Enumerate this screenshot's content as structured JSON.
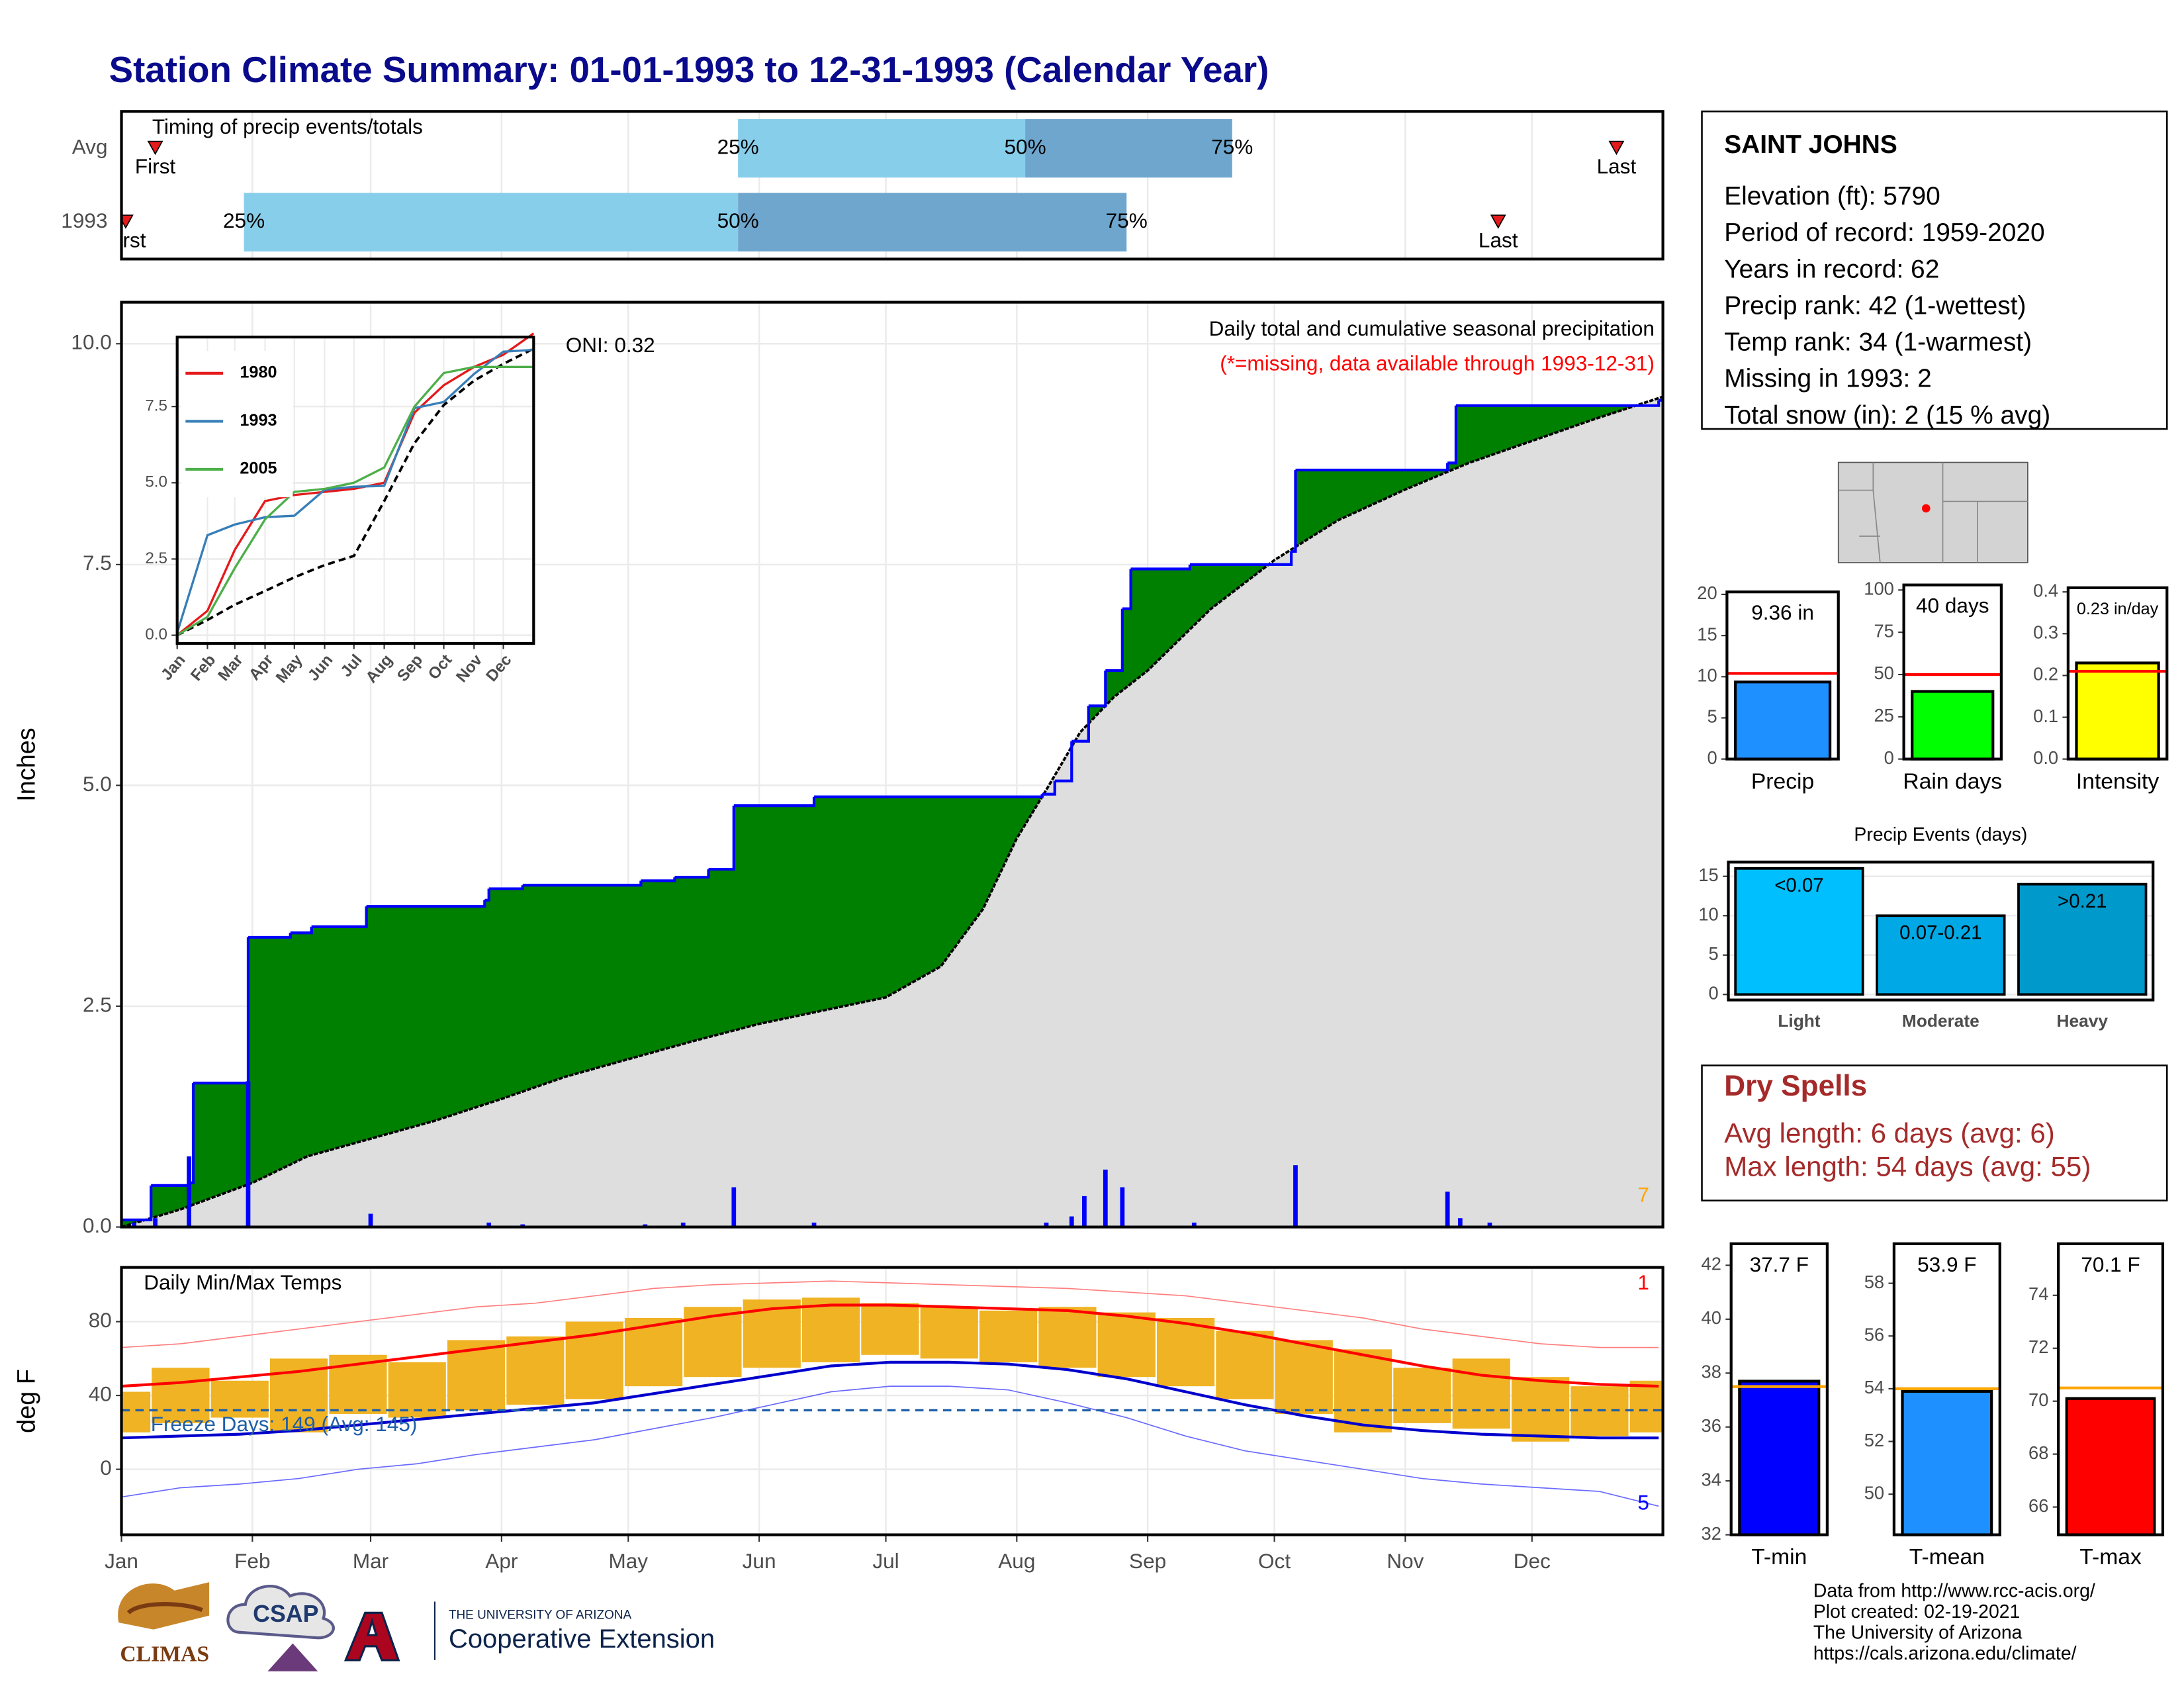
{
  "title": "Station Climate Summary: 01-01-1993 to 12-31-1993 (Calendar Year)",
  "chart_data": [
    {
      "type": "timing",
      "title": "Timing of precip events/totals",
      "xlim": [
        1,
        366
      ],
      "rows": [
        {
          "name": "Avg",
          "first": 9,
          "q25": 147,
          "q50": 215,
          "q75": 264,
          "last": 355
        },
        {
          "name": "1993",
          "first": 2,
          "q25": 30,
          "q50": 147,
          "q75": 239,
          "last": 327
        }
      ],
      "labels": {
        "first": "First",
        "q25": "25%",
        "q50": "50%",
        "q75": "75%",
        "last": "Last"
      },
      "colors": [
        "#87ceeb",
        "#6ea6cd"
      ],
      "marker_color": "#e41a1c"
    },
    {
      "type": "precipitation",
      "ylabel": "Inches",
      "annotations": {
        "title": "Daily total and cumulative seasonal precipitation",
        "note": "(*=missing, data available through 1993-12-31)",
        "oni": "ONI: 0.32",
        "count": "7"
      },
      "xlim": [
        1,
        366
      ],
      "ylim": [
        0,
        10.47
      ],
      "yticks": [
        {
          "value": 0,
          "label": "0.0"
        },
        2.5,
        {
          "value": 5,
          "label": "5.0"
        },
        7.5,
        {
          "value": 10,
          "label": "10.0"
        }
      ],
      "series": [
        {
          "color": "#0000ff",
          "fill": "#008000",
          "x": [
            1,
            8,
            17,
            18,
            31,
            41,
            46,
            59,
            87,
            88,
            96,
            124,
            132,
            140,
            146,
            165,
            219,
            222,
            226,
            230,
            234,
            238,
            240,
            254,
            278,
            279,
            315,
            317,
            365
          ],
          "values": [
            0.08,
            0.47,
            0.5,
            1.63,
            3.28,
            3.33,
            3.4,
            3.63,
            3.7,
            3.83,
            3.87,
            3.92,
            3.96,
            4.05,
            4.77,
            4.87,
            4.9,
            5.05,
            5.5,
            5.9,
            6.3,
            7.0,
            7.45,
            7.5,
            7.65,
            8.57,
            8.65,
            9.3,
            9.36
          ]
        },
        {
          "color": "#000000",
          "fill": "#dedede",
          "x": [
            1,
            15,
            32,
            45,
            60,
            75,
            91,
            106,
            121,
            136,
            152,
            167,
            182,
            195,
            205,
            213,
            220,
            228,
            236,
            244,
            259,
            274,
            289,
            305,
            320,
            335,
            350,
            366
          ],
          "values": [
            0,
            0.2,
            0.5,
            0.8,
            1.0,
            1.2,
            1.45,
            1.7,
            1.9,
            2.1,
            2.3,
            2.45,
            2.6,
            2.95,
            3.6,
            4.4,
            4.95,
            5.6,
            6.0,
            6.3,
            7.0,
            7.55,
            8.0,
            8.35,
            8.65,
            8.9,
            9.15,
            9.4
          ]
        }
      ],
      "daily": {
        "color": "#0000ff",
        "x": [
          4,
          9,
          17,
          31,
          60,
          88,
          96,
          125,
          134,
          146,
          165,
          220,
          226,
          229,
          234,
          238,
          255,
          279,
          315,
          318,
          325
        ],
        "values": [
          0.05,
          0.1,
          0.8,
          1.65,
          0.15,
          0.05,
          0.03,
          0.03,
          0.05,
          0.45,
          0.05,
          0.05,
          0.12,
          0.35,
          0.65,
          0.45,
          0.05,
          0.7,
          0.4,
          0.1,
          0.05
        ]
      }
    },
    {
      "type": "line",
      "xlim": [
        1,
        366
      ],
      "ylim": [
        -0.27,
        9.78
      ],
      "yticks": [
        {
          "value": 0,
          "label": "0.0"
        },
        2.5,
        {
          "value": 5,
          "label": "5.0"
        },
        7.5
      ],
      "xticks": [
        {
          "value": 1,
          "label": "Jan"
        },
        {
          "value": 32,
          "label": "Feb"
        },
        {
          "value": 60,
          "label": "Mar"
        },
        {
          "value": 91,
          "label": "Apr"
        },
        {
          "value": 121,
          "label": "May"
        },
        {
          "value": 152,
          "label": "Jun"
        },
        {
          "value": 182,
          "label": "Jul"
        },
        {
          "value": 213,
          "label": "Aug"
        },
        {
          "value": 244,
          "label": "Sep"
        },
        {
          "value": 274,
          "label": "Oct"
        },
        {
          "value": 305,
          "label": "Nov"
        },
        {
          "value": 335,
          "label": "Dec"
        }
      ],
      "x": [
        1,
        32,
        60,
        91,
        121,
        152,
        182,
        213,
        244,
        274,
        305,
        335,
        366
      ],
      "series": [
        {
          "name": "1980",
          "color": "#e41a1c",
          "values": [
            0,
            0.8,
            2.8,
            4.4,
            4.6,
            4.7,
            4.8,
            5.0,
            7.3,
            8.2,
            8.8,
            9.2,
            9.9
          ]
        },
        {
          "name": "1993",
          "color": "#377eb8",
          "values": [
            0.08,
            3.28,
            3.63,
            3.87,
            3.92,
            4.77,
            4.87,
            4.9,
            7.45,
            7.65,
            8.57,
            9.3,
            9.36
          ]
        },
        {
          "name": "2005",
          "color": "#4daf4a",
          "values": [
            0,
            0.6,
            2.2,
            3.8,
            4.7,
            4.8,
            5.0,
            5.5,
            7.5,
            8.6,
            8.8,
            8.8,
            8.8
          ]
        }
      ],
      "average": {
        "color": "#000000",
        "dashed": true,
        "values": [
          0,
          0.5,
          1.0,
          1.45,
          1.9,
          2.3,
          2.6,
          4.4,
          6.3,
          7.55,
          8.35,
          8.9,
          9.4
        ]
      }
    },
    {
      "type": "temperature",
      "title": "Daily Min/Max Temps",
      "ylabel": "deg F",
      "freeze_label": "Freeze Days: 149 (Avg: 145)",
      "freeze_temp": 32,
      "freeze_color": "#1f5fa8",
      "record_high_count": "1",
      "record_low_count": "5",
      "xlim": [
        1,
        366
      ],
      "ylim": [
        -35.5,
        109.4
      ],
      "yticks": [
        0,
        40,
        80
      ],
      "xticks": [
        {
          "value": 1,
          "label": "Jan"
        },
        {
          "value": 32,
          "label": "Feb"
        },
        {
          "value": 60,
          "label": "Mar"
        },
        {
          "value": 91,
          "label": "Apr"
        },
        {
          "value": 121,
          "label": "May"
        },
        {
          "value": 152,
          "label": "Jun"
        },
        {
          "value": 182,
          "label": "Jul"
        },
        {
          "value": 213,
          "label": "Aug"
        },
        {
          "value": 244,
          "label": "Sep"
        },
        {
          "value": 274,
          "label": "Oct"
        },
        {
          "value": 305,
          "label": "Nov"
        },
        {
          "value": 335,
          "label": "Dec"
        }
      ],
      "x": [
        1,
        15,
        29,
        43,
        57,
        71,
        85,
        99,
        113,
        127,
        141,
        155,
        169,
        183,
        197,
        211,
        225,
        239,
        253,
        267,
        281,
        295,
        309,
        323,
        337,
        351,
        365
      ],
      "range": {
        "color": "#f0b323",
        "low": [
          20,
          25,
          28,
          20,
          30,
          28,
          32,
          35,
          38,
          45,
          50,
          55,
          58,
          62,
          60,
          58,
          55,
          50,
          45,
          38,
          30,
          20,
          25,
          22,
          15,
          18,
          20
        ],
        "high": [
          42,
          55,
          48,
          60,
          62,
          58,
          70,
          72,
          80,
          82,
          88,
          92,
          93,
          90,
          88,
          86,
          88,
          85,
          82,
          75,
          70,
          65,
          55,
          60,
          50,
          45,
          48
        ]
      },
      "series": [
        {
          "color": "#ff0000",
          "width": 2,
          "values": [
            45,
            47,
            50,
            53,
            57,
            61,
            65,
            69,
            73,
            78,
            83,
            87,
            89,
            89,
            88,
            87,
            86,
            83,
            79,
            74,
            68,
            62,
            56,
            51,
            48,
            46,
            45
          ]
        },
        {
          "color": "#0000cd",
          "width": 2,
          "values": [
            17,
            18,
            19,
            21,
            24,
            27,
            30,
            33,
            36,
            41,
            46,
            51,
            56,
            58,
            58,
            57,
            54,
            49,
            42,
            35,
            29,
            24,
            21,
            19,
            18,
            17,
            17
          ]
        },
        {
          "color": "#ff7f7f",
          "width": 0.8,
          "values": [
            66,
            68,
            72,
            76,
            80,
            84,
            88,
            90,
            94,
            98,
            100,
            101,
            102,
            101,
            100,
            99,
            98,
            96,
            94,
            90,
            86,
            82,
            76,
            72,
            68,
            66,
            66
          ]
        },
        {
          "color": "#6a6aff",
          "width": 0.8,
          "values": [
            -15,
            -10,
            -8,
            -5,
            0,
            3,
            8,
            12,
            16,
            22,
            28,
            35,
            42,
            45,
            45,
            43,
            36,
            28,
            18,
            10,
            5,
            0,
            -5,
            -8,
            -10,
            -12,
            -20
          ]
        }
      ]
    },
    {
      "type": "summary",
      "categories": [
        "Precip"
      ],
      "values": [
        9.36
      ],
      "value_labels": [
        "9.36 in"
      ],
      "average": 10.4,
      "color": "#1e90ff",
      "average_color": "#ff0000",
      "ylim": [
        0,
        20.3
      ],
      "yticks": [
        0,
        5,
        10,
        15,
        20
      ]
    },
    {
      "type": "summary",
      "categories": [
        "Rain days"
      ],
      "values": [
        40
      ],
      "value_labels": [
        "40 days"
      ],
      "average": 50,
      "color": "#00ff00",
      "average_color": "#ff0000",
      "ylim": [
        0,
        103
      ],
      "yticks": [
        0,
        25,
        50,
        75,
        100
      ]
    },
    {
      "type": "summary",
      "categories": [
        "Intensity"
      ],
      "values": [
        0.23
      ],
      "value_labels": [
        "0.23 in/day"
      ],
      "average": 0.21,
      "color": "#ffff00",
      "average_color": "#ff0000",
      "ylim": [
        0,
        0.41
      ],
      "yticks": [
        {
          "value": 0,
          "label": "0.0"
        },
        0.1,
        0.2,
        0.3,
        0.4
      ]
    },
    {
      "type": "bar",
      "title": "Precip Events (days)",
      "categories": [
        "Light",
        "Moderate",
        "Heavy"
      ],
      "bar_labels": [
        "<0.07",
        "0.07-0.21",
        ">0.21"
      ],
      "values": [
        16,
        10,
        14
      ],
      "colors": [
        "#00bfff",
        "#00a9e6",
        "#0099cc"
      ],
      "ylim": [
        -0.7,
        16.8
      ],
      "yticks": [
        0,
        5,
        10,
        15
      ]
    },
    {
      "type": "summary",
      "categories": [
        "T-min"
      ],
      "values": [
        37.7
      ],
      "value_labels": [
        "37.7 F"
      ],
      "average": 37.5,
      "color": "#0000ff",
      "average_color": "#ffa500",
      "ylim": [
        32,
        42.8
      ],
      "yticks": [
        32,
        34,
        36,
        38,
        40,
        42
      ]
    },
    {
      "type": "summary",
      "categories": [
        "T-mean"
      ],
      "values": [
        53.9
      ],
      "value_labels": [
        "53.9 F"
      ],
      "average": 54.0,
      "color": "#1e90ff",
      "average_color": "#ffa500",
      "ylim": [
        48.46,
        59.5
      ],
      "yticks": [
        50,
        52,
        54,
        56,
        58
      ]
    },
    {
      "type": "summary",
      "categories": [
        "T-max"
      ],
      "values": [
        70.1
      ],
      "value_labels": [
        "70.1 F"
      ],
      "average": 70.5,
      "color": "#ff0000",
      "average_color": "#ffa500",
      "ylim": [
        64.95,
        75.95
      ],
      "yticks": [
        66,
        68,
        70,
        72,
        74
      ]
    }
  ],
  "station": {
    "name": "SAINT JOHNS",
    "lines": [
      "Elevation (ft): 5790",
      "Period of record: 1959-2020",
      "Years in record: 62",
      "Precip rank: 42 (1-wettest)",
      "Temp rank: 34 (1-warmest)",
      "Missing in 1993: 2",
      "Total snow (in): 2 (15 % avg)"
    ]
  },
  "dry_spells": {
    "title": "Dry Spells",
    "lines": [
      "Avg length: 6 days (avg: 6)",
      "Max length: 54 days (avg: 55)"
    ]
  },
  "credits": [
    "Data from http://www.rcc-acis.org/",
    "Plot created: 02-19-2021",
    "The University of Arizona",
    "https://cals.arizona.edu/climate/"
  ],
  "logos": {
    "climas": "CLIMAS",
    "csap": "CSAP",
    "university": "THE UNIVERSITY OF ARIZONA",
    "extension": "Cooperative Extension"
  }
}
